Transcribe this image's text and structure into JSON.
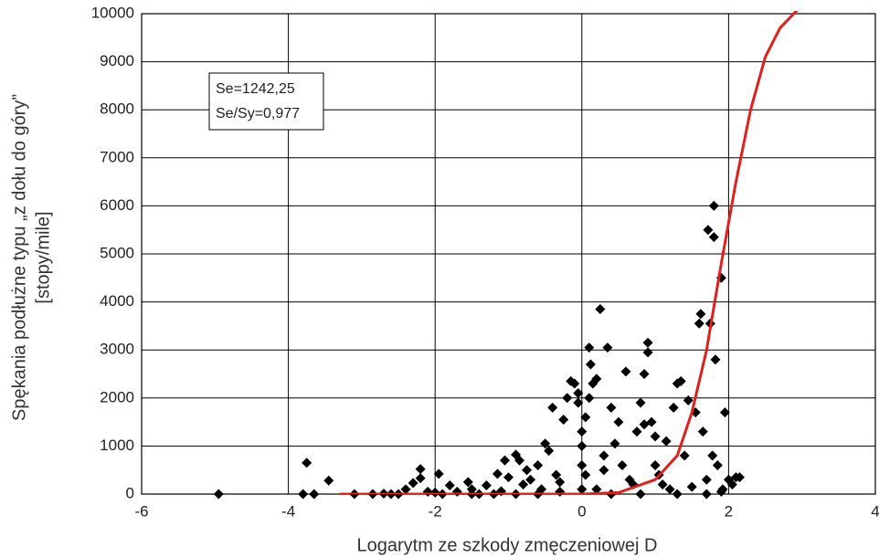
{
  "chart_data": {
    "type": "scatter",
    "xlabel": "Logarytm ze szkody zmęczeniowej D",
    "ylabel": [
      "Spękania podłużne typu „z dołu do góry”",
      "[stopy/mile]"
    ],
    "annotations": [
      "Se=1242,25",
      "Se/Sy=0,977"
    ],
    "xlim": [
      -6,
      4
    ],
    "xticks": [
      -6,
      -4,
      -2,
      0,
      2,
      4
    ],
    "ylim": [
      0,
      10000
    ],
    "yticks": [
      0,
      1000,
      2000,
      3000,
      4000,
      5000,
      6000,
      7000,
      8000,
      9000,
      10000
    ],
    "grid": true,
    "series": [
      {
        "type": "scatter",
        "color": "#000000",
        "x": [
          -4.95,
          -3.75,
          -3.8,
          -3.65,
          -3.45,
          -3.1,
          -2.85,
          -2.6,
          -2.4,
          -2.3,
          -2.2,
          -2.2,
          -2.1,
          -1.95,
          -1.9,
          -1.8,
          -1.7,
          -1.55,
          -1.5,
          -1.4,
          -1.3,
          -1.2,
          -1.15,
          -1.05,
          -1.0,
          -0.9,
          -0.85,
          -0.8,
          -0.75,
          -0.7,
          -0.6,
          -0.55,
          -0.5,
          -0.45,
          -0.4,
          -0.35,
          -0.3,
          -0.25,
          -0.2,
          -0.15,
          -0.1,
          -0.05,
          -0.05,
          0,
          0,
          0,
          0,
          0.05,
          0.05,
          0.1,
          0.1,
          0.12,
          0.15,
          0.2,
          0.25,
          0.3,
          0.3,
          0.35,
          0.4,
          0.45,
          0.5,
          0.55,
          0.6,
          0.65,
          0.7,
          0.75,
          0.8,
          0.85,
          0.9,
          0.9,
          0.85,
          0.95,
          1.0,
          1.0,
          1.05,
          1.1,
          1.15,
          1.2,
          1.25,
          1.3,
          1.35,
          1.4,
          1.45,
          1.5,
          1.55,
          1.6,
          1.62,
          1.65,
          1.7,
          1.72,
          1.75,
          1.78,
          1.8,
          1.8,
          1.82,
          1.85,
          1.9,
          1.92,
          1.95,
          2.0,
          2.05,
          2.1,
          2.15,
          -0.6,
          -0.9,
          -1.5,
          -2.5,
          0.4,
          0.8,
          1.3,
          1.7,
          1.9,
          0.2,
          -0.3,
          -1.1,
          -2.0,
          -2.7
        ],
        "values": [
          0,
          650,
          0,
          0,
          280,
          0,
          0,
          0,
          100,
          230,
          330,
          520,
          50,
          420,
          0,
          180,
          50,
          250,
          100,
          0,
          180,
          0,
          420,
          700,
          350,
          820,
          700,
          200,
          500,
          300,
          600,
          100,
          1050,
          900,
          1800,
          400,
          250,
          1550,
          2000,
          2350,
          2300,
          2100,
          1900,
          1300,
          1000,
          600,
          100,
          1600,
          400,
          2000,
          3050,
          2700,
          2300,
          2400,
          3850,
          800,
          500,
          3050,
          1800,
          1050,
          1500,
          600,
          2550,
          300,
          200,
          1300,
          1900,
          1450,
          3150,
          2950,
          2500,
          1500,
          600,
          1200,
          400,
          200,
          1100,
          100,
          1800,
          2300,
          2350,
          800,
          1950,
          150,
          1700,
          3550,
          3750,
          1300,
          300,
          5500,
          3550,
          800,
          6000,
          5350,
          2800,
          600,
          4500,
          100,
          1700,
          300,
          200,
          350,
          350,
          0,
          0,
          0,
          0,
          0,
          0,
          0,
          0,
          50,
          100,
          50,
          60,
          30,
          10
        ]
      },
      {
        "type": "line",
        "color": "#e0201c",
        "x": [
          -3.3,
          -2,
          0,
          0.5,
          1,
          1.3,
          1.5,
          1.7,
          1.9,
          2.1,
          2.3,
          2.5,
          2.7,
          2.95
        ],
        "values": [
          0,
          0,
          0,
          30,
          300,
          800,
          1700,
          3000,
          4800,
          6500,
          8000,
          9100,
          9700,
          10100
        ]
      }
    ]
  }
}
